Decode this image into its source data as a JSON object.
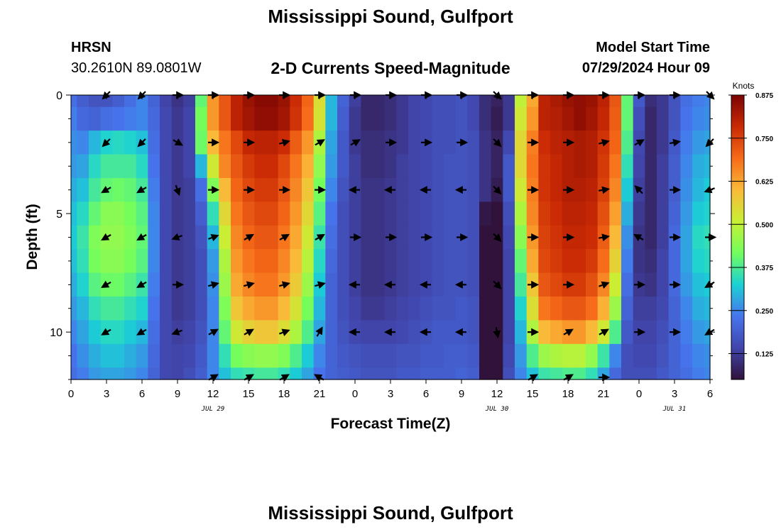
{
  "header": {
    "title": "Mississippi Sound, Gulfport",
    "station": "HRSN",
    "coordinates": "30.2610N  89.0801W",
    "subtitle": "2-D Currents Speed-Magnitude",
    "model_start_label": "Model Start Time",
    "model_start_value": "07/29/2024 Hour 09",
    "footer_title": "Mississippi Sound, Gulfport"
  },
  "chart_data": {
    "type": "heatmap",
    "title": "2-D Currents Speed-Magnitude",
    "xlabel": "Forecast Time(Z)",
    "ylabel": "Depth (ft)",
    "x_range_hours": [
      0,
      54
    ],
    "x_tick_labels": [
      "0",
      "3",
      "6",
      "9",
      "12",
      "15",
      "18",
      "21",
      "0",
      "3",
      "6",
      "9",
      "12",
      "15",
      "18",
      "21",
      "0",
      "3",
      "6"
    ],
    "date_labels": [
      {
        "label": "JUL 29",
        "hour": 12
      },
      {
        "label": "JUL 30",
        "hour": 36
      },
      {
        "label": "JUL 31",
        "hour": 51
      }
    ],
    "y_range_ft": [
      0,
      12
    ],
    "y_ticks": [
      0,
      5,
      10
    ],
    "y_inverted": true,
    "colorbar": {
      "title": "Knots",
      "min": 0.05,
      "max": 0.875,
      "tick_labels": [
        "0.875",
        "0.750",
        "0.625",
        "0.500",
        "0.375",
        "0.250",
        "0.125"
      ],
      "colors": [
        "#30123b",
        "#4145ab",
        "#4675ed",
        "#1bd0d5",
        "#72fe5e",
        "#c8ef34",
        "#faba39",
        "#f66b19",
        "#ca2a04",
        "#7a0403"
      ]
    },
    "time_hours": [
      0,
      1,
      2,
      3,
      4,
      5,
      6,
      7,
      8,
      9,
      10,
      11,
      12,
      13,
      14,
      15,
      16,
      17,
      18,
      19,
      20,
      21,
      22,
      23,
      24,
      25,
      26,
      27,
      28,
      29,
      30,
      31,
      32,
      33,
      34,
      35,
      36,
      37,
      38,
      39,
      40,
      41,
      42,
      43,
      44,
      45,
      46,
      47,
      48,
      49,
      50,
      51,
      52,
      53,
      54
    ],
    "depths_ft": [
      0,
      1,
      2,
      3,
      4,
      5,
      6,
      7,
      8,
      9,
      10,
      11,
      12
    ],
    "speed_knots": [
      [
        0.22,
        0.19,
        0.17,
        0.17,
        0.19,
        0.22,
        0.25,
        0.2,
        0.14,
        0.11,
        0.13,
        0.4,
        0.64,
        0.72,
        0.8,
        0.84,
        0.86,
        0.86,
        0.84,
        0.78,
        0.7,
        0.54,
        0.3,
        0.2,
        0.13,
        0.09,
        0.09,
        0.1,
        0.12,
        0.14,
        0.15,
        0.16,
        0.16,
        0.17,
        0.15,
        0.1,
        0.08,
        0.12,
        0.5,
        0.62,
        0.8,
        0.82,
        0.84,
        0.85,
        0.84,
        0.8,
        0.72,
        0.4,
        0.18,
        0.1,
        0.12,
        0.17,
        0.22,
        0.24,
        0.25
      ],
      [
        0.24,
        0.21,
        0.2,
        0.22,
        0.23,
        0.24,
        0.25,
        0.21,
        0.15,
        0.12,
        0.14,
        0.42,
        0.64,
        0.72,
        0.8,
        0.83,
        0.85,
        0.85,
        0.83,
        0.77,
        0.69,
        0.53,
        0.3,
        0.19,
        0.12,
        0.09,
        0.09,
        0.1,
        0.12,
        0.14,
        0.15,
        0.16,
        0.16,
        0.17,
        0.15,
        0.1,
        0.07,
        0.12,
        0.52,
        0.64,
        0.8,
        0.81,
        0.83,
        0.85,
        0.83,
        0.79,
        0.71,
        0.4,
        0.16,
        0.09,
        0.12,
        0.17,
        0.23,
        0.25,
        0.26
      ],
      [
        0.26,
        0.25,
        0.3,
        0.33,
        0.34,
        0.33,
        0.31,
        0.22,
        0.15,
        0.12,
        0.14,
        0.41,
        0.6,
        0.68,
        0.74,
        0.79,
        0.8,
        0.8,
        0.78,
        0.71,
        0.64,
        0.48,
        0.28,
        0.18,
        0.12,
        0.1,
        0.1,
        0.11,
        0.12,
        0.14,
        0.15,
        0.16,
        0.16,
        0.17,
        0.16,
        0.11,
        0.08,
        0.15,
        0.55,
        0.67,
        0.78,
        0.8,
        0.81,
        0.82,
        0.81,
        0.77,
        0.7,
        0.38,
        0.15,
        0.09,
        0.12,
        0.18,
        0.24,
        0.27,
        0.28
      ],
      [
        0.27,
        0.28,
        0.34,
        0.37,
        0.37,
        0.37,
        0.34,
        0.23,
        0.15,
        0.12,
        0.14,
        0.3,
        0.52,
        0.66,
        0.72,
        0.76,
        0.78,
        0.78,
        0.74,
        0.68,
        0.61,
        0.45,
        0.27,
        0.18,
        0.13,
        0.1,
        0.1,
        0.11,
        0.13,
        0.14,
        0.15,
        0.16,
        0.17,
        0.17,
        0.16,
        0.11,
        0.08,
        0.18,
        0.55,
        0.68,
        0.77,
        0.79,
        0.81,
        0.82,
        0.81,
        0.76,
        0.68,
        0.35,
        0.14,
        0.09,
        0.13,
        0.19,
        0.25,
        0.29,
        0.3
      ],
      [
        0.29,
        0.31,
        0.37,
        0.4,
        0.41,
        0.4,
        0.37,
        0.24,
        0.15,
        0.12,
        0.13,
        0.22,
        0.43,
        0.6,
        0.7,
        0.74,
        0.76,
        0.76,
        0.72,
        0.66,
        0.58,
        0.42,
        0.25,
        0.17,
        0.13,
        0.11,
        0.11,
        0.12,
        0.13,
        0.14,
        0.15,
        0.16,
        0.17,
        0.17,
        0.16,
        0.11,
        0.07,
        0.18,
        0.52,
        0.67,
        0.77,
        0.79,
        0.81,
        0.81,
        0.8,
        0.75,
        0.66,
        0.32,
        0.13,
        0.09,
        0.13,
        0.19,
        0.26,
        0.3,
        0.32
      ],
      [
        0.31,
        0.34,
        0.4,
        0.44,
        0.44,
        0.42,
        0.39,
        0.25,
        0.15,
        0.12,
        0.13,
        0.19,
        0.35,
        0.55,
        0.68,
        0.72,
        0.74,
        0.74,
        0.7,
        0.64,
        0.55,
        0.39,
        0.23,
        0.16,
        0.13,
        0.11,
        0.11,
        0.12,
        0.13,
        0.14,
        0.15,
        0.16,
        0.17,
        0.17,
        0.16,
        0.06,
        0.05,
        0.16,
        0.48,
        0.66,
        0.76,
        0.78,
        0.8,
        0.8,
        0.79,
        0.73,
        0.63,
        0.29,
        0.12,
        0.09,
        0.13,
        0.2,
        0.27,
        0.32,
        0.33
      ],
      [
        0.32,
        0.36,
        0.43,
        0.45,
        0.45,
        0.43,
        0.4,
        0.25,
        0.15,
        0.12,
        0.13,
        0.17,
        0.3,
        0.51,
        0.66,
        0.7,
        0.72,
        0.72,
        0.68,
        0.62,
        0.52,
        0.36,
        0.22,
        0.16,
        0.13,
        0.11,
        0.11,
        0.12,
        0.13,
        0.14,
        0.15,
        0.16,
        0.17,
        0.17,
        0.16,
        0.04,
        0.04,
        0.15,
        0.44,
        0.64,
        0.75,
        0.77,
        0.79,
        0.79,
        0.78,
        0.71,
        0.6,
        0.26,
        0.11,
        0.09,
        0.13,
        0.21,
        0.28,
        0.34,
        0.35
      ],
      [
        0.31,
        0.35,
        0.42,
        0.44,
        0.44,
        0.42,
        0.39,
        0.25,
        0.15,
        0.12,
        0.13,
        0.16,
        0.27,
        0.48,
        0.64,
        0.68,
        0.7,
        0.7,
        0.66,
        0.6,
        0.49,
        0.34,
        0.21,
        0.16,
        0.13,
        0.11,
        0.11,
        0.12,
        0.13,
        0.14,
        0.15,
        0.16,
        0.17,
        0.17,
        0.16,
        0.04,
        0.04,
        0.14,
        0.4,
        0.62,
        0.74,
        0.76,
        0.78,
        0.78,
        0.76,
        0.69,
        0.56,
        0.24,
        0.11,
        0.1,
        0.14,
        0.21,
        0.28,
        0.33,
        0.34
      ],
      [
        0.29,
        0.33,
        0.39,
        0.41,
        0.41,
        0.39,
        0.36,
        0.24,
        0.15,
        0.12,
        0.13,
        0.16,
        0.26,
        0.46,
        0.62,
        0.66,
        0.68,
        0.68,
        0.64,
        0.57,
        0.46,
        0.32,
        0.2,
        0.16,
        0.13,
        0.11,
        0.11,
        0.12,
        0.13,
        0.14,
        0.15,
        0.16,
        0.17,
        0.17,
        0.16,
        0.04,
        0.04,
        0.14,
        0.37,
        0.58,
        0.72,
        0.74,
        0.76,
        0.76,
        0.73,
        0.66,
        0.51,
        0.22,
        0.12,
        0.11,
        0.14,
        0.21,
        0.27,
        0.31,
        0.32
      ],
      [
        0.27,
        0.3,
        0.35,
        0.37,
        0.37,
        0.35,
        0.33,
        0.23,
        0.15,
        0.12,
        0.13,
        0.16,
        0.25,
        0.43,
        0.58,
        0.62,
        0.64,
        0.64,
        0.6,
        0.53,
        0.42,
        0.3,
        0.2,
        0.16,
        0.14,
        0.12,
        0.12,
        0.13,
        0.14,
        0.15,
        0.16,
        0.17,
        0.17,
        0.18,
        0.17,
        0.04,
        0.04,
        0.14,
        0.33,
        0.54,
        0.68,
        0.7,
        0.72,
        0.72,
        0.69,
        0.61,
        0.46,
        0.2,
        0.13,
        0.13,
        0.15,
        0.2,
        0.25,
        0.29,
        0.3
      ],
      [
        0.25,
        0.28,
        0.32,
        0.34,
        0.34,
        0.32,
        0.3,
        0.22,
        0.15,
        0.13,
        0.14,
        0.17,
        0.25,
        0.4,
        0.52,
        0.56,
        0.58,
        0.58,
        0.54,
        0.48,
        0.38,
        0.28,
        0.2,
        0.17,
        0.15,
        0.14,
        0.14,
        0.14,
        0.15,
        0.16,
        0.17,
        0.18,
        0.18,
        0.18,
        0.17,
        0.04,
        0.04,
        0.14,
        0.3,
        0.48,
        0.6,
        0.62,
        0.64,
        0.64,
        0.6,
        0.52,
        0.38,
        0.18,
        0.14,
        0.14,
        0.16,
        0.2,
        0.24,
        0.27,
        0.28
      ],
      [
        0.23,
        0.26,
        0.29,
        0.31,
        0.31,
        0.29,
        0.27,
        0.21,
        0.15,
        0.14,
        0.15,
        0.18,
        0.25,
        0.35,
        0.42,
        0.44,
        0.45,
        0.45,
        0.43,
        0.38,
        0.32,
        0.25,
        0.2,
        0.18,
        0.17,
        0.16,
        0.16,
        0.16,
        0.17,
        0.17,
        0.18,
        0.18,
        0.19,
        0.19,
        0.18,
        0.04,
        0.04,
        0.15,
        0.27,
        0.38,
        0.46,
        0.48,
        0.49,
        0.49,
        0.45,
        0.36,
        0.25,
        0.16,
        0.15,
        0.15,
        0.17,
        0.2,
        0.23,
        0.25,
        0.26
      ],
      [
        0.22,
        0.24,
        0.27,
        0.28,
        0.28,
        0.27,
        0.25,
        0.2,
        0.15,
        0.14,
        0.16,
        0.19,
        0.25,
        0.31,
        0.35,
        0.36,
        0.37,
        0.37,
        0.35,
        0.32,
        0.28,
        0.23,
        0.2,
        0.19,
        0.18,
        0.17,
        0.17,
        0.17,
        0.18,
        0.18,
        0.19,
        0.19,
        0.19,
        0.2,
        0.19,
        0.04,
        0.04,
        0.16,
        0.25,
        0.31,
        0.36,
        0.37,
        0.38,
        0.38,
        0.35,
        0.28,
        0.21,
        0.16,
        0.16,
        0.16,
        0.18,
        0.2,
        0.22,
        0.24,
        0.25
      ]
    ],
    "vectors": {
      "time_hours": [
        3,
        6,
        9,
        12,
        15,
        18,
        21,
        24,
        27,
        30,
        33,
        36,
        39,
        42,
        45,
        48,
        51,
        54
      ],
      "depths_ft": [
        0,
        2,
        4,
        6,
        8,
        10,
        12
      ],
      "directions_deg_math": [
        [
          225,
          225,
          0,
          0,
          0,
          0,
          0,
          0,
          0,
          0,
          0,
          315,
          0,
          0,
          0,
          0,
          0,
          315
        ],
        [
          225,
          225,
          330,
          0,
          0,
          15,
          30,
          30,
          0,
          0,
          0,
          315,
          0,
          0,
          15,
          30,
          10,
          225
        ],
        [
          210,
          210,
          290,
          0,
          0,
          0,
          0,
          180,
          180,
          180,
          180,
          315,
          0,
          0,
          10,
          135,
          0,
          200
        ],
        [
          210,
          210,
          200,
          20,
          30,
          30,
          30,
          0,
          0,
          0,
          0,
          315,
          0,
          0,
          10,
          150,
          0,
          0
        ],
        [
          210,
          210,
          0,
          15,
          15,
          15,
          15,
          180,
          180,
          180,
          180,
          315,
          0,
          0,
          20,
          0,
          0,
          210
        ],
        [
          210,
          210,
          200,
          30,
          30,
          20,
          60,
          180,
          180,
          180,
          180,
          280,
          0,
          30,
          30,
          0,
          0,
          210
        ],
        [
          0,
          0,
          0,
          30,
          30,
          30,
          150,
          0,
          0,
          0,
          0,
          0,
          30,
          30,
          0,
          0,
          0,
          0
        ]
      ],
      "present": [
        [
          1,
          1,
          1,
          1,
          1,
          1,
          1,
          1,
          1,
          1,
          1,
          1,
          1,
          1,
          1,
          1,
          1,
          1
        ],
        [
          1,
          1,
          1,
          1,
          1,
          1,
          1,
          1,
          1,
          1,
          1,
          1,
          1,
          1,
          1,
          1,
          1,
          1
        ],
        [
          1,
          1,
          1,
          1,
          1,
          1,
          1,
          1,
          1,
          1,
          1,
          1,
          1,
          1,
          1,
          1,
          1,
          1
        ],
        [
          1,
          1,
          1,
          1,
          1,
          1,
          1,
          1,
          1,
          1,
          1,
          1,
          1,
          1,
          1,
          1,
          1,
          1
        ],
        [
          1,
          1,
          1,
          1,
          1,
          1,
          1,
          1,
          1,
          1,
          1,
          1,
          1,
          1,
          1,
          1,
          1,
          1
        ],
        [
          1,
          1,
          1,
          1,
          1,
          1,
          1,
          1,
          1,
          1,
          1,
          1,
          1,
          1,
          1,
          1,
          1,
          1
        ],
        [
          0,
          0,
          0,
          1,
          1,
          1,
          1,
          0,
          0,
          0,
          0,
          0,
          1,
          1,
          1,
          0,
          0,
          0
        ]
      ]
    }
  }
}
